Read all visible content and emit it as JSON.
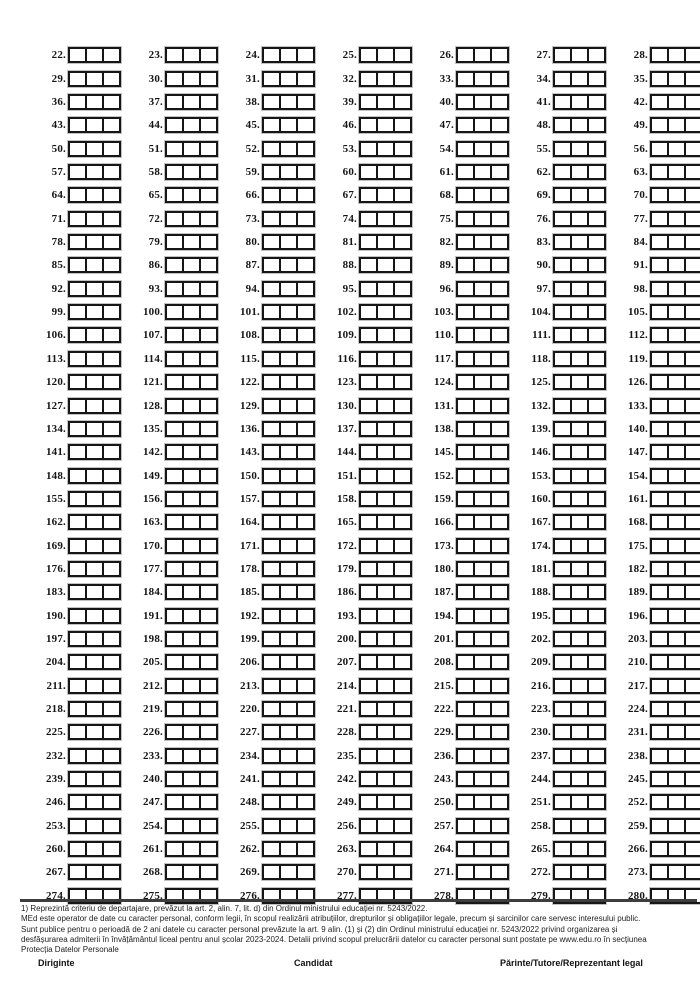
{
  "grid": {
    "number_suffix": ".",
    "boxes_per_item": 3,
    "numbers": [
      22,
      23,
      24,
      25,
      26,
      27,
      28,
      29,
      30,
      31,
      32,
      33,
      34,
      35,
      36,
      37,
      38,
      39,
      40,
      41,
      42,
      43,
      44,
      45,
      46,
      47,
      48,
      49,
      50,
      51,
      52,
      53,
      54,
      55,
      56,
      57,
      58,
      59,
      60,
      61,
      62,
      63,
      64,
      65,
      66,
      67,
      68,
      69,
      70,
      71,
      72,
      73,
      74,
      75,
      76,
      77,
      78,
      79,
      80,
      81,
      82,
      83,
      84,
      85,
      86,
      87,
      88,
      89,
      90,
      91,
      92,
      93,
      94,
      95,
      96,
      97,
      98,
      99,
      100,
      101,
      102,
      103,
      104,
      105,
      106,
      107,
      108,
      109,
      110,
      111,
      112,
      113,
      114,
      115,
      116,
      117,
      118,
      119,
      120,
      121,
      122,
      123,
      124,
      125,
      126,
      127,
      128,
      129,
      130,
      131,
      132,
      133,
      134,
      135,
      136,
      137,
      138,
      139,
      140,
      141,
      142,
      143,
      144,
      145,
      146,
      147,
      148,
      149,
      150,
      151,
      152,
      153,
      154,
      155,
      156,
      157,
      158,
      159,
      160,
      161,
      162,
      163,
      164,
      165,
      166,
      167,
      168,
      169,
      170,
      171,
      172,
      173,
      174,
      175,
      176,
      177,
      178,
      179,
      180,
      181,
      182,
      183,
      184,
      185,
      186,
      187,
      188,
      189,
      190,
      191,
      192,
      193,
      194,
      195,
      196,
      197,
      198,
      199,
      200,
      201,
      202,
      203,
      204,
      205,
      206,
      207,
      208,
      209,
      210,
      211,
      212,
      213,
      214,
      215,
      216,
      217,
      218,
      219,
      220,
      221,
      222,
      223,
      224,
      225,
      226,
      227,
      228,
      229,
      230,
      231,
      232,
      233,
      234,
      235,
      236,
      237,
      238,
      239,
      240,
      241,
      242,
      243,
      244,
      245,
      246,
      247,
      248,
      249,
      250,
      251,
      252,
      253,
      254,
      255,
      256,
      257,
      258,
      259,
      260,
      261,
      262,
      263,
      264,
      265,
      266,
      267,
      268,
      269,
      270,
      271,
      272,
      273,
      274,
      275,
      276,
      277,
      278,
      279,
      280
    ]
  },
  "divider_color": "#3d3d3d",
  "footnote": {
    "lines": [
      "1) Reprezintă criteriu de departajare, prevăzut la art. 2, alin. 7, lit. d) din Ordinul ministrului educației nr. 5243/2022.",
      "MEd este operator de date cu caracter personal, conform legii, în scopul realizării atribuțiilor, drepturilor și obligațiilor legale, precum și sarcinilor care servesc interesului public.",
      "Sunt publice pentru o perioadă de 2 ani datele cu caracter personal prevăzute la art. 9 alin. (1) și (2) din Ordinul ministrului educației nr. 5243/2022 privind organizarea și",
      "desfășurarea admiterii în învățământul liceal pentru anul școlar 2023-2024. Detalii privind scopul prelucrării datelor cu caracter personal sunt postate pe www.edu.ro în secțiunea",
      "Protecția Datelor Personale"
    ]
  },
  "signatures": {
    "left": "Diriginte",
    "center": "Candidat",
    "right": "Părinte/Tutore/Reprezentant legal"
  }
}
